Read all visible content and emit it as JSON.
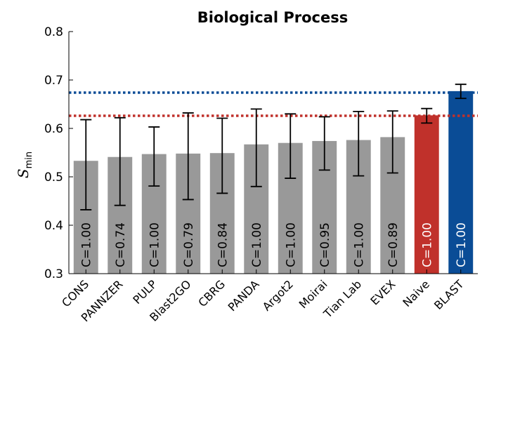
{
  "chart_data": {
    "type": "bar",
    "title": "Biological Process",
    "ylabel_main": "S",
    "ylabel_sub": "min",
    "xlabel": "",
    "ylim": [
      0.3,
      0.8
    ],
    "yticks": [
      "0.3",
      "0.4",
      "0.5",
      "0.6",
      "0.7",
      "0.8"
    ],
    "categories": [
      "CONS",
      "PANNZER",
      "PULP",
      "Blast2GO",
      "CBRG",
      "PANDA",
      "Argot2",
      "Moirai",
      "Tian Lab",
      "EVEX",
      "Naive",
      "BLAST"
    ],
    "values": [
      0.533,
      0.541,
      0.547,
      0.548,
      0.549,
      0.567,
      0.57,
      0.574,
      0.576,
      0.582,
      0.627,
      0.677
    ],
    "error_low": [
      0.432,
      0.441,
      0.481,
      0.453,
      0.466,
      0.48,
      0.497,
      0.514,
      0.502,
      0.508,
      0.611,
      0.662
    ],
    "error_high": [
      0.618,
      0.622,
      0.603,
      0.632,
      0.621,
      0.64,
      0.63,
      0.624,
      0.635,
      0.636,
      0.641,
      0.691
    ],
    "coverage_labels": [
      "C=1.00",
      "C=0.74",
      "C=1.00",
      "C=0.79",
      "C=0.84",
      "C=1.00",
      "C=1.00",
      "C=0.95",
      "C=1.00",
      "C=0.89",
      "C=1.00",
      "C=1.00"
    ],
    "bar_colors": [
      "#999999",
      "#999999",
      "#999999",
      "#999999",
      "#999999",
      "#999999",
      "#999999",
      "#999999",
      "#999999",
      "#999999",
      "#c0312b",
      "#0a4c96"
    ],
    "label_colors": [
      "#000000",
      "#000000",
      "#000000",
      "#000000",
      "#000000",
      "#000000",
      "#000000",
      "#000000",
      "#000000",
      "#000000",
      "#ffffff",
      "#ffffff"
    ],
    "reference_lines": [
      {
        "value": 0.674,
        "color": "#0a4c96",
        "style": "dotted"
      },
      {
        "value": 0.626,
        "color": "#c0312b",
        "style": "dotted"
      }
    ],
    "grid": false,
    "legend": "none"
  }
}
